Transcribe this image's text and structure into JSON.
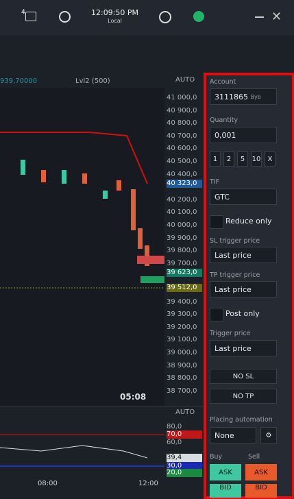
{
  "topbar": {
    "badge": "4",
    "time": "12:09:50 PM",
    "zone": "Local"
  },
  "chart": {
    "tab_price": "939,70000",
    "tab_lvl2": "Lvl2 (500)",
    "axis_mode": "AUTO",
    "price_labels": [
      "41 000,0",
      "40 900,0",
      "40 800,0",
      "40 700,0",
      "40 600,0",
      "40 500,0",
      "40 400,0",
      "40 200,0",
      "40 100,0",
      "40 000,0",
      "39 900,0",
      "39 800,0",
      "39 700,0",
      "39 400,0",
      "39 300,0",
      "39 200,0",
      "39 100,0",
      "39 000,0",
      "38 900,0",
      "38 800,0",
      "38 700,0"
    ],
    "last_price": "40 323,0",
    "ask_price": "39 623,0",
    "bid_price": "39 512,0",
    "countdown": "05:08",
    "indicator_mode": "AUTO",
    "indicator_labels": [
      "80,0",
      "60,0"
    ],
    "indicator_high": "70,0",
    "indicator_value": "39,4",
    "indicator_low": "30,0",
    "indicator_low2": "20,0",
    "time_labels": [
      "08:00",
      "12:00"
    ]
  },
  "panel": {
    "account_label": "Account",
    "account": "3111865",
    "exchange": "Byb",
    "quantity_label": "Quantity",
    "quantity": "0,001",
    "presets": [
      "1",
      "2",
      "5",
      "10",
      "X"
    ],
    "tif_label": "TIF",
    "tif": "GTC",
    "reduce_only": "Reduce only",
    "sl_label": "SL trigger price",
    "sl": "Last price",
    "tp_label": "TP trigger price",
    "tp": "Last price",
    "post_only": "Post only",
    "trigger_label": "Trigger price",
    "trigger": "Last price",
    "no_sl": "NO SL",
    "no_tp": "NO TP",
    "automation_label": "Placing automation",
    "automation": "None",
    "buy": "Buy",
    "sell": "Sell",
    "ask": "ASK",
    "bid": "BID"
  }
}
